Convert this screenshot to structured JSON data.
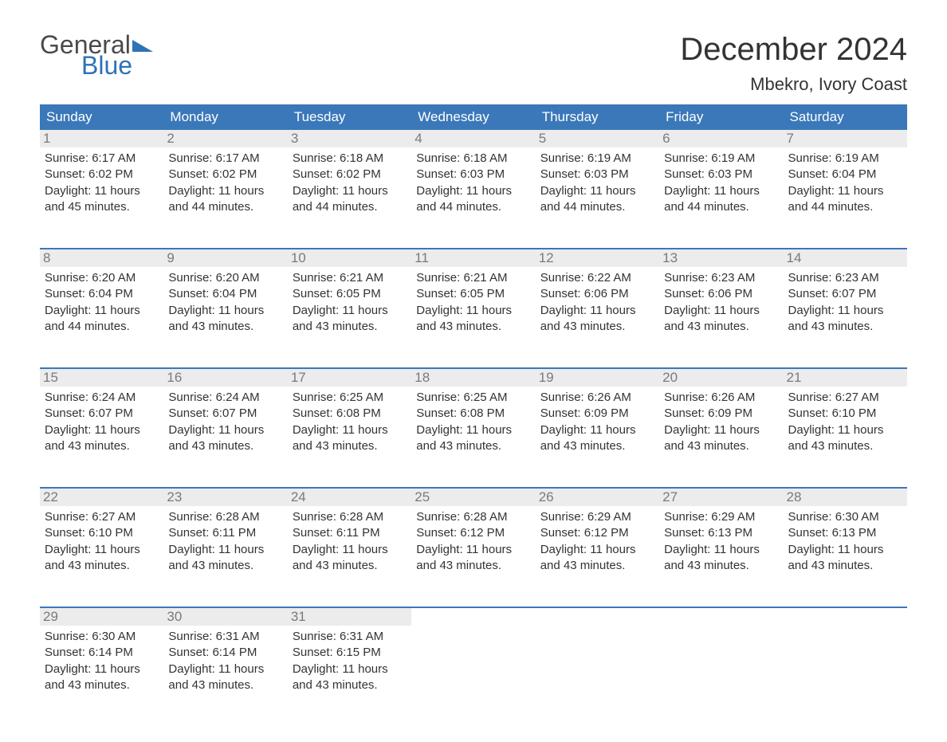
{
  "logo": {
    "general": "General",
    "blue": "Blue"
  },
  "title": "December 2024",
  "location": "Mbekro, Ivory Coast",
  "colors": {
    "header_bg": "#3a78b9",
    "header_text": "#ffffff",
    "daynum_bg": "#ececec",
    "daynum_text": "#7a7a7a",
    "body_text": "#333333",
    "week_border": "#3a78b9",
    "logo_blue": "#2f72b6",
    "logo_gray": "#4a4a4a",
    "page_bg": "#ffffff"
  },
  "typography": {
    "title_fontsize": 40,
    "location_fontsize": 22,
    "dow_fontsize": 17,
    "daynum_fontsize": 17,
    "body_fontsize": 15,
    "logo_fontsize": 32
  },
  "dow": [
    "Sunday",
    "Monday",
    "Tuesday",
    "Wednesday",
    "Thursday",
    "Friday",
    "Saturday"
  ],
  "weeks": [
    [
      {
        "n": "1",
        "sunrise": "Sunrise: 6:17 AM",
        "sunset": "Sunset: 6:02 PM",
        "d1": "Daylight: 11 hours",
        "d2": "and 45 minutes."
      },
      {
        "n": "2",
        "sunrise": "Sunrise: 6:17 AM",
        "sunset": "Sunset: 6:02 PM",
        "d1": "Daylight: 11 hours",
        "d2": "and 44 minutes."
      },
      {
        "n": "3",
        "sunrise": "Sunrise: 6:18 AM",
        "sunset": "Sunset: 6:02 PM",
        "d1": "Daylight: 11 hours",
        "d2": "and 44 minutes."
      },
      {
        "n": "4",
        "sunrise": "Sunrise: 6:18 AM",
        "sunset": "Sunset: 6:03 PM",
        "d1": "Daylight: 11 hours",
        "d2": "and 44 minutes."
      },
      {
        "n": "5",
        "sunrise": "Sunrise: 6:19 AM",
        "sunset": "Sunset: 6:03 PM",
        "d1": "Daylight: 11 hours",
        "d2": "and 44 minutes."
      },
      {
        "n": "6",
        "sunrise": "Sunrise: 6:19 AM",
        "sunset": "Sunset: 6:03 PM",
        "d1": "Daylight: 11 hours",
        "d2": "and 44 minutes."
      },
      {
        "n": "7",
        "sunrise": "Sunrise: 6:19 AM",
        "sunset": "Sunset: 6:04 PM",
        "d1": "Daylight: 11 hours",
        "d2": "and 44 minutes."
      }
    ],
    [
      {
        "n": "8",
        "sunrise": "Sunrise: 6:20 AM",
        "sunset": "Sunset: 6:04 PM",
        "d1": "Daylight: 11 hours",
        "d2": "and 44 minutes."
      },
      {
        "n": "9",
        "sunrise": "Sunrise: 6:20 AM",
        "sunset": "Sunset: 6:04 PM",
        "d1": "Daylight: 11 hours",
        "d2": "and 43 minutes."
      },
      {
        "n": "10",
        "sunrise": "Sunrise: 6:21 AM",
        "sunset": "Sunset: 6:05 PM",
        "d1": "Daylight: 11 hours",
        "d2": "and 43 minutes."
      },
      {
        "n": "11",
        "sunrise": "Sunrise: 6:21 AM",
        "sunset": "Sunset: 6:05 PM",
        "d1": "Daylight: 11 hours",
        "d2": "and 43 minutes."
      },
      {
        "n": "12",
        "sunrise": "Sunrise: 6:22 AM",
        "sunset": "Sunset: 6:06 PM",
        "d1": "Daylight: 11 hours",
        "d2": "and 43 minutes."
      },
      {
        "n": "13",
        "sunrise": "Sunrise: 6:23 AM",
        "sunset": "Sunset: 6:06 PM",
        "d1": "Daylight: 11 hours",
        "d2": "and 43 minutes."
      },
      {
        "n": "14",
        "sunrise": "Sunrise: 6:23 AM",
        "sunset": "Sunset: 6:07 PM",
        "d1": "Daylight: 11 hours",
        "d2": "and 43 minutes."
      }
    ],
    [
      {
        "n": "15",
        "sunrise": "Sunrise: 6:24 AM",
        "sunset": "Sunset: 6:07 PM",
        "d1": "Daylight: 11 hours",
        "d2": "and 43 minutes."
      },
      {
        "n": "16",
        "sunrise": "Sunrise: 6:24 AM",
        "sunset": "Sunset: 6:07 PM",
        "d1": "Daylight: 11 hours",
        "d2": "and 43 minutes."
      },
      {
        "n": "17",
        "sunrise": "Sunrise: 6:25 AM",
        "sunset": "Sunset: 6:08 PM",
        "d1": "Daylight: 11 hours",
        "d2": "and 43 minutes."
      },
      {
        "n": "18",
        "sunrise": "Sunrise: 6:25 AM",
        "sunset": "Sunset: 6:08 PM",
        "d1": "Daylight: 11 hours",
        "d2": "and 43 minutes."
      },
      {
        "n": "19",
        "sunrise": "Sunrise: 6:26 AM",
        "sunset": "Sunset: 6:09 PM",
        "d1": "Daylight: 11 hours",
        "d2": "and 43 minutes."
      },
      {
        "n": "20",
        "sunrise": "Sunrise: 6:26 AM",
        "sunset": "Sunset: 6:09 PM",
        "d1": "Daylight: 11 hours",
        "d2": "and 43 minutes."
      },
      {
        "n": "21",
        "sunrise": "Sunrise: 6:27 AM",
        "sunset": "Sunset: 6:10 PM",
        "d1": "Daylight: 11 hours",
        "d2": "and 43 minutes."
      }
    ],
    [
      {
        "n": "22",
        "sunrise": "Sunrise: 6:27 AM",
        "sunset": "Sunset: 6:10 PM",
        "d1": "Daylight: 11 hours",
        "d2": "and 43 minutes."
      },
      {
        "n": "23",
        "sunrise": "Sunrise: 6:28 AM",
        "sunset": "Sunset: 6:11 PM",
        "d1": "Daylight: 11 hours",
        "d2": "and 43 minutes."
      },
      {
        "n": "24",
        "sunrise": "Sunrise: 6:28 AM",
        "sunset": "Sunset: 6:11 PM",
        "d1": "Daylight: 11 hours",
        "d2": "and 43 minutes."
      },
      {
        "n": "25",
        "sunrise": "Sunrise: 6:28 AM",
        "sunset": "Sunset: 6:12 PM",
        "d1": "Daylight: 11 hours",
        "d2": "and 43 minutes."
      },
      {
        "n": "26",
        "sunrise": "Sunrise: 6:29 AM",
        "sunset": "Sunset: 6:12 PM",
        "d1": "Daylight: 11 hours",
        "d2": "and 43 minutes."
      },
      {
        "n": "27",
        "sunrise": "Sunrise: 6:29 AM",
        "sunset": "Sunset: 6:13 PM",
        "d1": "Daylight: 11 hours",
        "d2": "and 43 minutes."
      },
      {
        "n": "28",
        "sunrise": "Sunrise: 6:30 AM",
        "sunset": "Sunset: 6:13 PM",
        "d1": "Daylight: 11 hours",
        "d2": "and 43 minutes."
      }
    ],
    [
      {
        "n": "29",
        "sunrise": "Sunrise: 6:30 AM",
        "sunset": "Sunset: 6:14 PM",
        "d1": "Daylight: 11 hours",
        "d2": "and 43 minutes."
      },
      {
        "n": "30",
        "sunrise": "Sunrise: 6:31 AM",
        "sunset": "Sunset: 6:14 PM",
        "d1": "Daylight: 11 hours",
        "d2": "and 43 minutes."
      },
      {
        "n": "31",
        "sunrise": "Sunrise: 6:31 AM",
        "sunset": "Sunset: 6:15 PM",
        "d1": "Daylight: 11 hours",
        "d2": "and 43 minutes."
      },
      {
        "empty": true
      },
      {
        "empty": true
      },
      {
        "empty": true
      },
      {
        "empty": true
      }
    ]
  ]
}
